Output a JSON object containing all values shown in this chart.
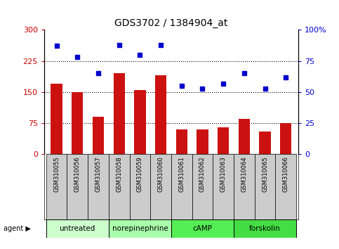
{
  "title": "GDS3702 / 1384904_at",
  "samples": [
    "GSM310055",
    "GSM310056",
    "GSM310057",
    "GSM310058",
    "GSM310059",
    "GSM310060",
    "GSM310061",
    "GSM310062",
    "GSM310063",
    "GSM310064",
    "GSM310065",
    "GSM310066"
  ],
  "counts": [
    170,
    150,
    90,
    195,
    155,
    190,
    60,
    60,
    65,
    85,
    55,
    75
  ],
  "percentiles": [
    87,
    78,
    65,
    88,
    80,
    88,
    55,
    53,
    57,
    65,
    53,
    62
  ],
  "bar_color": "#cc1111",
  "dot_color": "#0000cc",
  "left_ylim": [
    0,
    300
  ],
  "right_ylim": [
    0,
    100
  ],
  "left_yticks": [
    0,
    75,
    150,
    225,
    300
  ],
  "right_yticks": [
    0,
    25,
    50,
    75,
    100
  ],
  "right_yticklabels": [
    "0",
    "25",
    "50",
    "75",
    "100%"
  ],
  "hlines": [
    75,
    150,
    225
  ],
  "agents": [
    {
      "label": "untreated",
      "start": 0,
      "end": 3,
      "color": "#ccffcc"
    },
    {
      "label": "norepinephrine",
      "start": 3,
      "end": 6,
      "color": "#aaffaa"
    },
    {
      "label": "cAMP",
      "start": 6,
      "end": 9,
      "color": "#55ee55"
    },
    {
      "label": "forskolin",
      "start": 9,
      "end": 12,
      "color": "#44dd44"
    }
  ],
  "sample_bg_color": "#cccccc",
  "legend_count_color": "#cc1111",
  "legend_dot_color": "#0000cc",
  "left_tick_color": "#cc0000",
  "right_tick_color": "#0000cc"
}
